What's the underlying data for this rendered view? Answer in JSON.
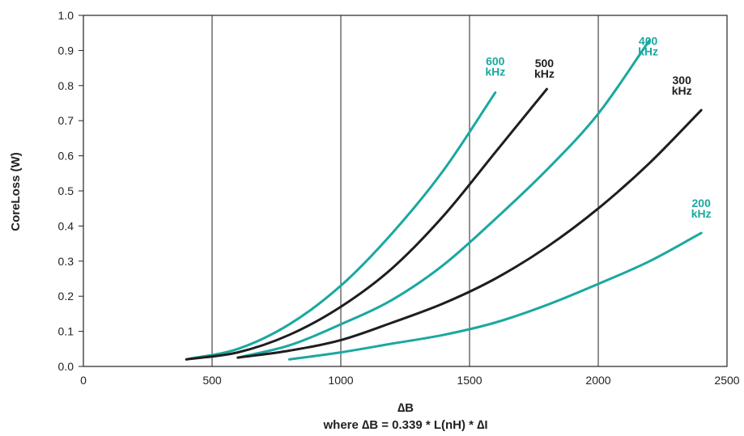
{
  "chart_data": {
    "type": "line",
    "title": "",
    "xlabel": "∆B",
    "xlabel_note": "where ∆B = 0.339 * L(nH) * ∆I",
    "ylabel": "CoreLoss (W)",
    "xlim": [
      0,
      2500
    ],
    "ylim": [
      0,
      1.0
    ],
    "x_ticks": [
      "0",
      "500",
      "1000",
      "1500",
      "2000",
      "2500"
    ],
    "y_ticks": [
      "0.0",
      "0.1",
      "0.2",
      "0.3",
      "0.4",
      "0.5",
      "0.6",
      "0.7",
      "0.8",
      "0.9",
      "1.0"
    ],
    "grid": true,
    "series": [
      {
        "name_line1": "600",
        "name_line2": "kHz",
        "color": "#1aa8a0",
        "x": [
          400,
          600,
          800,
          1000,
          1200,
          1400,
          1600
        ],
        "y": [
          0.02,
          0.05,
          0.12,
          0.23,
          0.38,
          0.56,
          0.78
        ]
      },
      {
        "name_line1": "500",
        "name_line2": "kHz",
        "color": "#1e1e1e",
        "x": [
          400,
          600,
          800,
          1000,
          1200,
          1400,
          1600,
          1800
        ],
        "y": [
          0.02,
          0.04,
          0.09,
          0.17,
          0.28,
          0.43,
          0.61,
          0.79
        ]
      },
      {
        "name_line1": "400",
        "name_line2": "kHz",
        "color": "#1aa8a0",
        "x": [
          600,
          800,
          1000,
          1200,
          1400,
          1600,
          1800,
          2000,
          2200
        ],
        "y": [
          0.025,
          0.06,
          0.12,
          0.19,
          0.29,
          0.42,
          0.56,
          0.72,
          0.93
        ]
      },
      {
        "name_line1": "300",
        "name_line2": "kHz",
        "color": "#1e1e1e",
        "x": [
          600,
          800,
          1000,
          1200,
          1400,
          1600,
          1800,
          2000,
          2200,
          2400
        ],
        "y": [
          0.025,
          0.045,
          0.075,
          0.125,
          0.18,
          0.25,
          0.34,
          0.45,
          0.58,
          0.73
        ]
      },
      {
        "name_line1": "200",
        "name_line2": "kHz",
        "color": "#1aa8a0",
        "x": [
          800,
          1000,
          1200,
          1400,
          1600,
          1800,
          2000,
          2200,
          2400
        ],
        "y": [
          0.02,
          0.04,
          0.065,
          0.09,
          0.125,
          0.175,
          0.235,
          0.3,
          0.38
        ]
      }
    ]
  }
}
